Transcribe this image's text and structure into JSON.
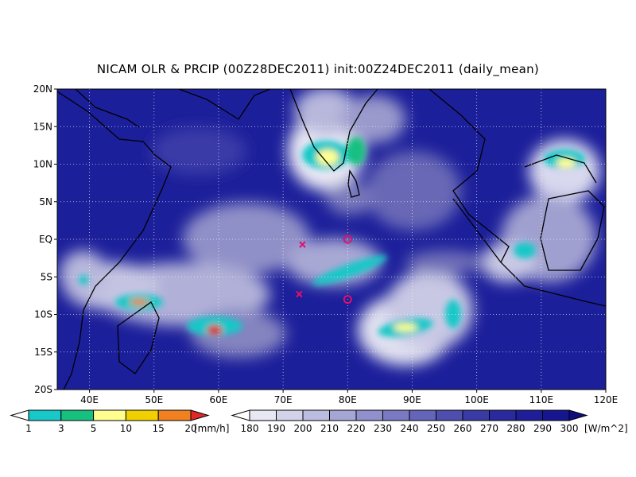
{
  "title": "NICAM OLR & PRCIP (00Z28DEC2011) init:00Z24DEC2011 (daily_mean)",
  "map": {
    "lat_labels": [
      "20N",
      "15N",
      "10N",
      "5N",
      "EQ",
      "5S",
      "10S",
      "15S",
      "20S"
    ],
    "lon_labels": [
      "40E",
      "50E",
      "60E",
      "70E",
      "80E",
      "90E",
      "100E",
      "110E",
      "120E"
    ],
    "lon_range": [
      35,
      120
    ],
    "lat_range": [
      -20,
      20
    ],
    "grid": "dotted",
    "ocean_color": "#1c1f9a",
    "coast_color": "#000000",
    "markers": [
      {
        "symbol": "x",
        "lon": 73,
        "lat": -0.7,
        "color": "#e0106c"
      },
      {
        "symbol": "x",
        "lon": 72.5,
        "lat": -7.3,
        "color": "#e0106c"
      },
      {
        "symbol": "o",
        "lon": 80,
        "lat": 0,
        "color": "#e0106c"
      },
      {
        "symbol": "o",
        "lon": 80,
        "lat": -8,
        "color": "#e0106c"
      }
    ]
  },
  "legend_precip": {
    "unit": "[mm/h]",
    "ticks": [
      "1",
      "3",
      "5",
      "10",
      "15",
      "20"
    ],
    "colors": [
      "#ffffff",
      "#18c8c8",
      "#18c080",
      "#ffff90",
      "#f0d000",
      "#f08020",
      "#e02828"
    ]
  },
  "legend_olr": {
    "unit": "[W/m^2]",
    "ticks": [
      "180",
      "190",
      "200",
      "210",
      "220",
      "230",
      "240",
      "250",
      "260",
      "270",
      "280",
      "290",
      "300"
    ],
    "colors": [
      "#ffffff",
      "#e8e8f4",
      "#d2d2ea",
      "#bcbce0",
      "#a6a6d6",
      "#9090cc",
      "#7a7ac2",
      "#6464b8",
      "#4e4eae",
      "#3a3aa4",
      "#2a2a9e",
      "#1e1e98",
      "#161690",
      "#0e0e80"
    ]
  }
}
